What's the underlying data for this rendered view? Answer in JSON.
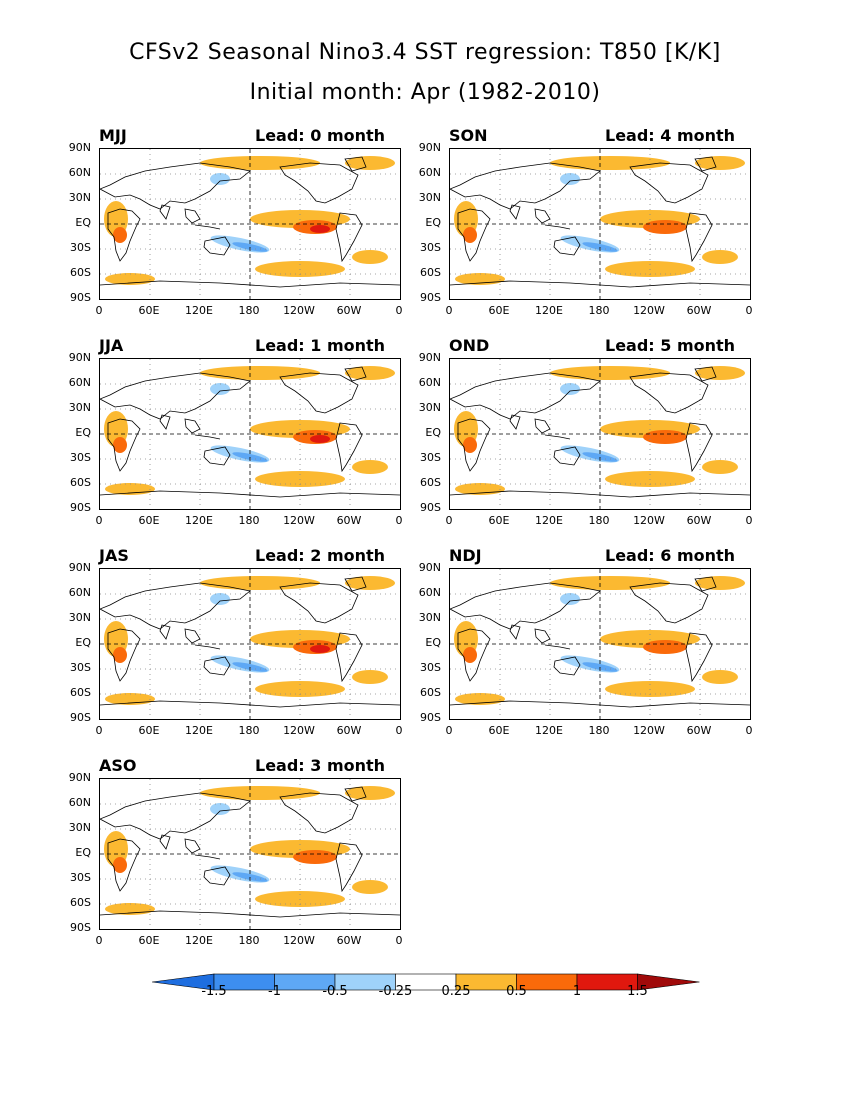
{
  "title": {
    "line1": "CFSv2 Seasonal Nino3.4 SST regression: T850 [K/K]",
    "line2": "Initial month: Apr (1982-2010)"
  },
  "panels": [
    {
      "season": "MJJ",
      "lead": "Lead: 0 month"
    },
    {
      "season": "JJA",
      "lead": "Lead: 1 month"
    },
    {
      "season": "JAS",
      "lead": "Lead: 2 month"
    },
    {
      "season": "ASO",
      "lead": "Lead: 3 month"
    },
    {
      "season": "SON",
      "lead": "Lead: 4 month"
    },
    {
      "season": "OND",
      "lead": "Lead: 5 month"
    },
    {
      "season": "NDJ",
      "lead": "Lead: 6 month"
    }
  ],
  "axes": {
    "lat_labels": [
      "90N",
      "60N",
      "30N",
      "EQ",
      "30S",
      "60S",
      "90S"
    ],
    "lon_labels": [
      "0",
      "60E",
      "120E",
      "180",
      "120W",
      "60W",
      "0"
    ]
  },
  "colorbar": {
    "labels": [
      "-1.5",
      "-1",
      "-0.5",
      "-0.25",
      "0.25",
      "0.5",
      "1",
      "1.5"
    ],
    "colors": [
      "#1e6ee0",
      "#3d8ef0",
      "#5ea8f5",
      "#9fd2fa",
      "#ffffff",
      "#fbb931",
      "#fa6a0a",
      "#e0180e",
      "#a00a0a"
    ]
  }
}
